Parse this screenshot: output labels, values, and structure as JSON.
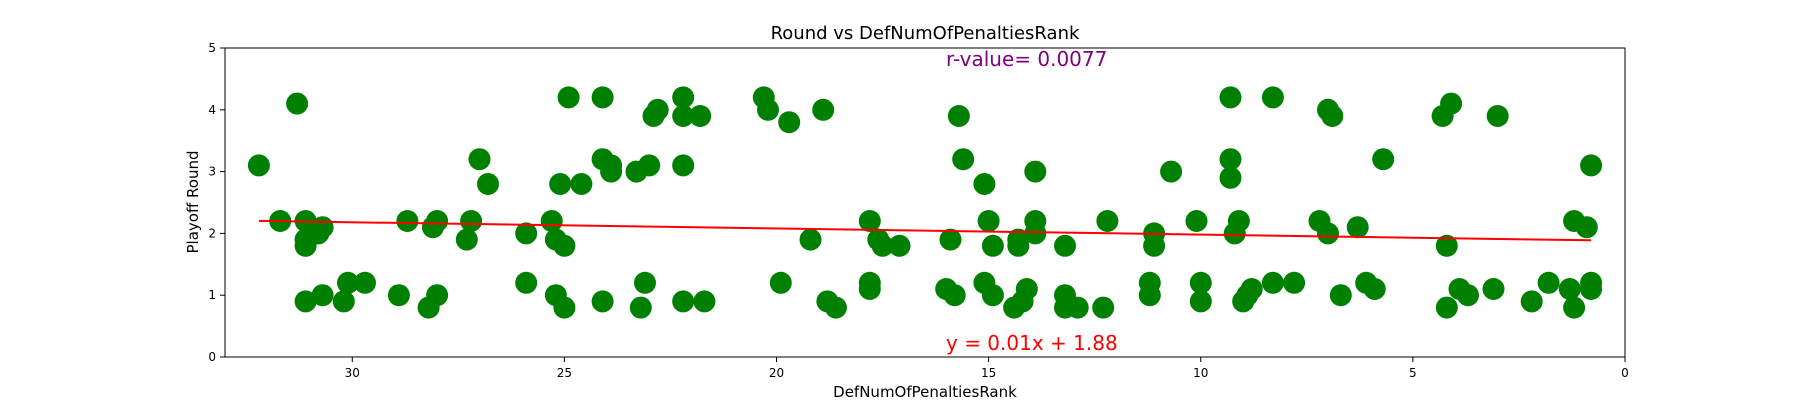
{
  "chart_data": {
    "type": "scatter",
    "title": "Round vs DefNumOfPenaltiesRank",
    "xlabel": "DefNumOfPenaltiesRank",
    "ylabel": "Playoff Round",
    "xlim": [
      33,
      0
    ],
    "ylim": [
      0,
      5
    ],
    "x_inverted": true,
    "xticks": [
      30,
      25,
      20,
      15,
      10,
      5,
      0
    ],
    "yticks": [
      0,
      1,
      2,
      3,
      4,
      5
    ],
    "grid": false,
    "point_color": "#008000",
    "line_color": "#ff0000",
    "annotation_r": "r-value= 0.0077",
    "annotation_r_color": "#800080",
    "annotation_eq": "y = 0.01x + 1.88",
    "annotation_eq_color": "#ff0000",
    "regression": {
      "slope": 0.01,
      "intercept": 1.88,
      "x_range": [
        32.2,
        0.8
      ]
    },
    "points": [
      [
        32.2,
        3.1
      ],
      [
        31.7,
        2.2
      ],
      [
        31.3,
        4.1
      ],
      [
        31.1,
        2.2
      ],
      [
        31.1,
        1.9
      ],
      [
        31.1,
        1.8
      ],
      [
        31.1,
        0.9
      ],
      [
        30.8,
        2.0
      ],
      [
        30.7,
        2.1
      ],
      [
        30.7,
        1.0
      ],
      [
        30.2,
        0.9
      ],
      [
        30.1,
        1.2
      ],
      [
        29.7,
        1.2
      ],
      [
        28.9,
        1.0
      ],
      [
        28.7,
        2.2
      ],
      [
        28.2,
        0.8
      ],
      [
        28.1,
        2.1
      ],
      [
        28.0,
        2.2
      ],
      [
        28.0,
        1.0
      ],
      [
        27.3,
        1.9
      ],
      [
        27.2,
        2.2
      ],
      [
        27.0,
        3.2
      ],
      [
        26.8,
        2.8
      ],
      [
        25.9,
        2.0
      ],
      [
        25.9,
        1.2
      ],
      [
        25.3,
        2.2
      ],
      [
        25.2,
        1.9
      ],
      [
        25.2,
        1.0
      ],
      [
        25.1,
        2.8
      ],
      [
        25.0,
        1.8
      ],
      [
        25.0,
        0.8
      ],
      [
        24.9,
        4.2
      ],
      [
        24.6,
        2.8
      ],
      [
        24.1,
        4.2
      ],
      [
        24.1,
        3.2
      ],
      [
        24.1,
        0.9
      ],
      [
        23.9,
        3.0
      ],
      [
        23.9,
        3.1
      ],
      [
        23.3,
        3.0
      ],
      [
        23.2,
        0.8
      ],
      [
        23.1,
        1.2
      ],
      [
        23.0,
        3.1
      ],
      [
        22.9,
        3.9
      ],
      [
        22.8,
        4.0
      ],
      [
        22.2,
        4.2
      ],
      [
        22.2,
        3.9
      ],
      [
        22.2,
        3.1
      ],
      [
        22.2,
        0.9
      ],
      [
        21.8,
        3.9
      ],
      [
        21.7,
        0.9
      ],
      [
        20.3,
        4.2
      ],
      [
        20.2,
        4.0
      ],
      [
        19.9,
        1.2
      ],
      [
        19.7,
        3.8
      ],
      [
        19.2,
        1.9
      ],
      [
        18.9,
        4.0
      ],
      [
        18.8,
        0.9
      ],
      [
        18.6,
        0.8
      ],
      [
        17.8,
        2.2
      ],
      [
        17.8,
        1.2
      ],
      [
        17.8,
        1.1
      ],
      [
        17.6,
        1.9
      ],
      [
        17.5,
        1.8
      ],
      [
        17.1,
        1.8
      ],
      [
        16.0,
        1.1
      ],
      [
        15.9,
        1.9
      ],
      [
        15.8,
        1.0
      ],
      [
        15.7,
        3.9
      ],
      [
        15.6,
        3.2
      ],
      [
        15.1,
        1.2
      ],
      [
        15.1,
        2.8
      ],
      [
        15.0,
        2.2
      ],
      [
        14.9,
        1.8
      ],
      [
        14.9,
        1.0
      ],
      [
        14.4,
        0.8
      ],
      [
        14.3,
        1.9
      ],
      [
        14.3,
        1.8
      ],
      [
        14.2,
        0.9
      ],
      [
        14.1,
        1.1
      ],
      [
        13.9,
        3.0
      ],
      [
        13.9,
        2.2
      ],
      [
        13.9,
        2.0
      ],
      [
        13.2,
        1.8
      ],
      [
        13.2,
        1.0
      ],
      [
        13.2,
        0.8
      ],
      [
        12.9,
        0.8
      ],
      [
        12.3,
        0.8
      ],
      [
        12.2,
        2.2
      ],
      [
        11.1,
        2.0
      ],
      [
        11.1,
        1.8
      ],
      [
        11.2,
        1.2
      ],
      [
        11.2,
        1.0
      ],
      [
        10.7,
        3.0
      ],
      [
        10.1,
        2.2
      ],
      [
        10.0,
        1.2
      ],
      [
        10.0,
        0.9
      ],
      [
        9.3,
        4.2
      ],
      [
        9.3,
        3.2
      ],
      [
        9.3,
        2.9
      ],
      [
        9.2,
        2.0
      ],
      [
        9.1,
        2.2
      ],
      [
        9.0,
        0.9
      ],
      [
        8.9,
        1.0
      ],
      [
        8.8,
        1.1
      ],
      [
        8.3,
        4.2
      ],
      [
        8.3,
        1.2
      ],
      [
        7.8,
        1.2
      ],
      [
        7.2,
        2.2
      ],
      [
        7.0,
        4.0
      ],
      [
        7.0,
        2.0
      ],
      [
        6.9,
        3.9
      ],
      [
        6.7,
        1.0
      ],
      [
        6.3,
        2.1
      ],
      [
        6.1,
        1.2
      ],
      [
        5.9,
        1.1
      ],
      [
        5.7,
        3.2
      ],
      [
        4.3,
        3.9
      ],
      [
        4.2,
        1.8
      ],
      [
        4.2,
        0.8
      ],
      [
        4.1,
        4.1
      ],
      [
        3.9,
        1.1
      ],
      [
        3.7,
        1.0
      ],
      [
        3.0,
        3.9
      ],
      [
        3.1,
        1.1
      ],
      [
        2.2,
        0.9
      ],
      [
        1.8,
        1.2
      ],
      [
        1.3,
        1.1
      ],
      [
        1.2,
        2.2
      ],
      [
        1.2,
        0.8
      ],
      [
        0.9,
        2.1
      ],
      [
        0.8,
        3.1
      ],
      [
        0.8,
        1.2
      ],
      [
        0.8,
        1.1
      ]
    ]
  }
}
